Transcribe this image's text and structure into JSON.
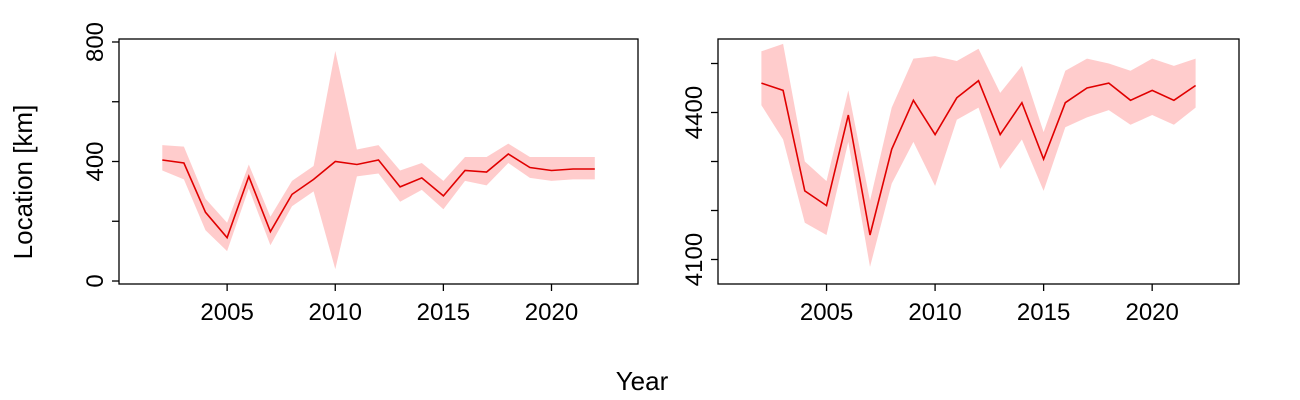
{
  "chart_data": {
    "type": "line",
    "xlabel": "Year",
    "ylabel": "Location [km]",
    "panels": [
      {
        "name": "",
        "xlim": [
          2000,
          2024
        ],
        "ylim": [
          -10,
          810
        ],
        "x_ticks": [
          2005,
          2010,
          2015,
          2020
        ],
        "y_ticks": [
          0,
          400,
          800
        ],
        "y_minor_ticks": [
          0,
          200,
          400,
          600,
          800
        ],
        "series": [
          {
            "name": "",
            "color": "#e00000",
            "band_color": "#ffcccc",
            "x": [
              2002,
              2003,
              2004,
              2005,
              2006,
              2007,
              2008,
              2009,
              2010,
              2011,
              2012,
              2013,
              2014,
              2015,
              2016,
              2017,
              2018,
              2019,
              2020,
              2021,
              2022
            ],
            "y": [
              405,
              395,
              230,
              145,
              350,
              165,
              290,
              340,
              400,
              390,
              405,
              315,
              345,
              285,
              370,
              365,
              425,
              380,
              370,
              375,
              375
            ],
            "lower": [
              370,
              340,
              170,
              100,
              310,
              120,
              250,
              300,
              40,
              350,
              360,
              265,
              305,
              240,
              335,
              320,
              395,
              345,
              335,
              340,
              340
            ],
            "upper": [
              455,
              450,
              275,
              195,
              390,
              215,
              335,
              385,
              770,
              440,
              455,
              370,
              395,
              335,
              415,
              415,
              460,
              415,
              415,
              415,
              415
            ]
          }
        ]
      },
      {
        "name": "",
        "xlim": [
          2000,
          2024
        ],
        "ylim": [
          4050,
          4550
        ],
        "x_ticks": [
          2005,
          2010,
          2015,
          2020
        ],
        "y_ticks": [
          4100,
          4400
        ],
        "y_minor_ticks": [
          4100,
          4200,
          4300,
          4400,
          4500
        ],
        "series": [
          {
            "name": "",
            "color": "#e00000",
            "band_color": "#ffcccc",
            "x": [
              2002,
              2003,
              2004,
              2005,
              2006,
              2007,
              2008,
              2009,
              2010,
              2011,
              2012,
              2013,
              2014,
              2015,
              2016,
              2017,
              2018,
              2019,
              2020,
              2021,
              2022
            ],
            "y": [
              4460,
              4445,
              4240,
              4210,
              4395,
              4150,
              4325,
              4425,
              4355,
              4430,
              4465,
              4355,
              4420,
              4305,
              4420,
              4450,
              4460,
              4425,
              4445,
              4425,
              4455
            ],
            "lower": [
              4415,
              4345,
              4175,
              4150,
              4340,
              4085,
              4255,
              4340,
              4250,
              4385,
              4410,
              4285,
              4345,
              4240,
              4370,
              4390,
              4405,
              4375,
              4395,
              4375,
              4410
            ],
            "upper": [
              4525,
              4540,
              4300,
              4260,
              4445,
              4220,
              4410,
              4510,
              4515,
              4505,
              4530,
              4440,
              4495,
              4360,
              4485,
              4510,
              4500,
              4485,
              4510,
              4495,
              4510
            ]
          }
        ]
      }
    ]
  }
}
